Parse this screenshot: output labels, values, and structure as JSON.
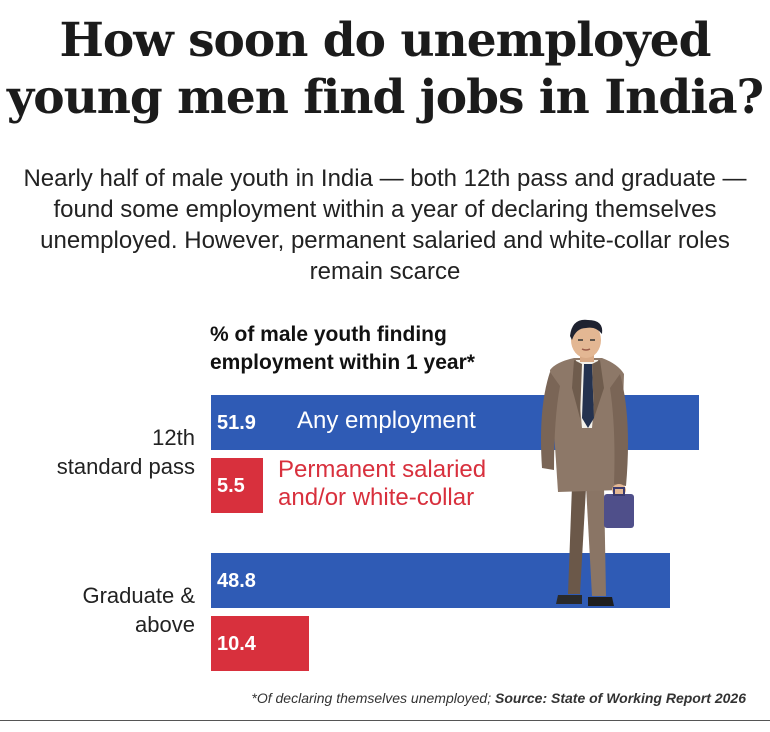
{
  "title_line1": "How soon do unemployed",
  "title_line2": "young men find jobs in India?",
  "subtitle": "Nearly half of male youth in India — both 12th pass and graduate — found some employment within a year of declaring themselves unemployed. However, permanent salaried and white-collar roles remain scarce",
  "chart_heading_line1": "% of male youth finding",
  "chart_heading_line2": "employment within 1 year*",
  "footnote_text": "*Of declaring themselves unemployed; ",
  "footnote_source": "Source: State of Working Report 2026",
  "colors": {
    "any": "#2f5bb5",
    "permanent": "#d8303d"
  },
  "chart_data": {
    "type": "bar",
    "orientation": "horizontal",
    "categories": [
      "12th standard pass",
      "Graduate & above"
    ],
    "category_labels": [
      [
        "12th",
        "standard pass"
      ],
      [
        "Graduate &",
        "above"
      ]
    ],
    "series": [
      {
        "name": "Any employment",
        "values": [
          51.9,
          48.8
        ]
      },
      {
        "name": "Permanent salaried and/or white-collar",
        "name_lines": [
          "Permanent salaried",
          "and/or white-collar"
        ],
        "values": [
          5.5,
          10.4
        ]
      }
    ],
    "value_labels": [
      [
        "51.9",
        "48.8"
      ],
      [
        "5.5",
        "10.4"
      ]
    ],
    "xlim": [
      0,
      56.5
    ],
    "title": "% of male youth finding employment within 1 year*"
  }
}
